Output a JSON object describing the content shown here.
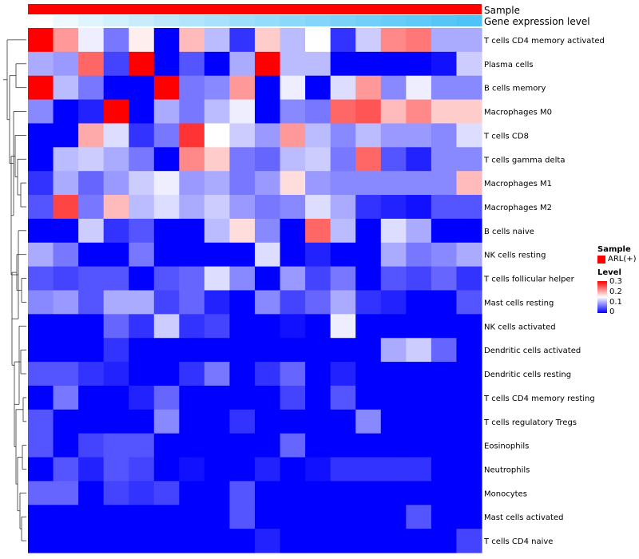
{
  "chart_data": {
    "type": "heatmap",
    "annotations": [
      {
        "label": "Sample",
        "values": [
          "ARL(+)"
        ],
        "color": "#ff0000"
      },
      {
        "label": "Gene expression level",
        "palette_low": "#ffffff",
        "palette_high": "#4fc3f7"
      }
    ],
    "num_columns": 18,
    "rows": [
      "T cells CD4 memory activated",
      "Plasma cells",
      "B cells memory",
      "Macrophages M0",
      "T cells CD8",
      "T cells gamma delta",
      "Macrophages M1",
      "Macrophages M2",
      "B cells naive",
      "NK cells resting",
      "T cells follicular helper",
      "Mast cells resting",
      "NK cells activated",
      "Dendritic cells activated",
      "Dendritic cells resting",
      "T cells CD4 memory resting",
      "T cells regulatory  Tregs",
      "Eosinophils",
      "Neutrophils",
      "Monocytes",
      "Mast cells activated",
      "T cells CD4 naive"
    ],
    "values": [
      [
        0.3,
        0.21,
        0.14,
        0.07,
        0.16,
        0.0,
        0.19,
        0.11,
        0.03,
        0.18,
        0.11,
        0.15,
        0.03,
        0.12,
        0.22,
        0.23,
        0.1,
        0.1
      ],
      [
        0.1,
        0.09,
        0.24,
        0.04,
        0.3,
        0.0,
        0.05,
        0.0,
        0.1,
        0.3,
        0.11,
        0.11,
        0.0,
        0.0,
        0.0,
        0.0,
        0.01,
        0.12
      ],
      [
        0.3,
        0.11,
        0.07,
        0.0,
        0.0,
        0.3,
        0.07,
        0.08,
        0.21,
        0.0,
        0.14,
        0.0,
        0.13,
        0.21,
        0.08,
        0.14,
        0.08,
        0.08
      ],
      [
        0.08,
        0.0,
        0.02,
        0.3,
        0.0,
        0.1,
        0.07,
        0.11,
        0.14,
        0.0,
        0.08,
        0.07,
        0.24,
        0.25,
        0.19,
        0.22,
        0.18,
        0.18
      ],
      [
        0.0,
        0.0,
        0.2,
        0.13,
        0.03,
        0.07,
        0.27,
        0.15,
        0.12,
        0.09,
        0.21,
        0.11,
        0.08,
        0.11,
        0.09,
        0.09,
        0.08,
        0.13
      ],
      [
        0.0,
        0.11,
        0.12,
        0.1,
        0.07,
        0.0,
        0.22,
        0.18,
        0.07,
        0.06,
        0.11,
        0.12,
        0.07,
        0.24,
        0.05,
        0.02,
        0.08,
        0.08
      ],
      [
        0.03,
        0.1,
        0.06,
        0.09,
        0.12,
        0.14,
        0.09,
        0.1,
        0.07,
        0.09,
        0.17,
        0.09,
        0.08,
        0.08,
        0.08,
        0.08,
        0.08,
        0.19
      ],
      [
        0.05,
        0.26,
        0.07,
        0.19,
        0.11,
        0.13,
        0.1,
        0.12,
        0.09,
        0.07,
        0.08,
        0.13,
        0.1,
        0.03,
        0.02,
        0.01,
        0.05,
        0.05
      ],
      [
        0.0,
        0.0,
        0.12,
        0.03,
        0.05,
        0.0,
        0.0,
        0.11,
        0.17,
        0.08,
        0.0,
        0.24,
        0.11,
        0.0,
        0.13,
        0.1,
        0.0,
        0.0
      ],
      [
        0.1,
        0.07,
        0.0,
        0.0,
        0.07,
        0.0,
        0.0,
        0.0,
        0.0,
        0.13,
        0.0,
        0.02,
        0.0,
        0.0,
        0.1,
        0.07,
        0.08,
        0.1
      ],
      [
        0.05,
        0.04,
        0.05,
        0.05,
        0.0,
        0.05,
        0.06,
        0.13,
        0.08,
        0.0,
        0.09,
        0.04,
        0.07,
        0.0,
        0.05,
        0.04,
        0.06,
        0.03
      ],
      [
        0.08,
        0.09,
        0.05,
        0.1,
        0.1,
        0.04,
        0.06,
        0.02,
        0.0,
        0.08,
        0.04,
        0.06,
        0.1,
        0.03,
        0.02,
        0.0,
        0.0,
        0.05
      ],
      [
        0.0,
        0.0,
        0.0,
        0.06,
        0.03,
        0.12,
        0.03,
        0.04,
        0.0,
        0.0,
        0.01,
        0.0,
        0.14,
        0.0,
        0.0,
        0.0,
        0.0,
        0.0
      ],
      [
        0.0,
        0.0,
        0.0,
        0.03,
        0.0,
        0.0,
        0.0,
        0.0,
        0.0,
        0.0,
        0.0,
        0.0,
        0.0,
        0.0,
        0.1,
        0.12,
        0.06,
        0.0
      ],
      [
        0.05,
        0.05,
        0.03,
        0.02,
        0.0,
        0.0,
        0.03,
        0.07,
        0.0,
        0.03,
        0.06,
        0.0,
        0.02,
        0.0,
        0.0,
        0.0,
        0.0,
        0.0
      ],
      [
        0.0,
        0.07,
        0.0,
        0.0,
        0.02,
        0.06,
        0.0,
        0.0,
        0.0,
        0.0,
        0.04,
        0.0,
        0.05,
        0.0,
        0.0,
        0.0,
        0.0,
        0.0
      ],
      [
        0.05,
        0.0,
        0.0,
        0.0,
        0.0,
        0.08,
        0.0,
        0.0,
        0.03,
        0.0,
        0.0,
        0.0,
        0.0,
        0.08,
        0.0,
        0.0,
        0.0,
        0.0
      ],
      [
        0.05,
        0.0,
        0.04,
        0.05,
        0.05,
        0.0,
        0.0,
        0.0,
        0.0,
        0.0,
        0.06,
        0.0,
        0.0,
        0.0,
        0.0,
        0.0,
        0.0,
        0.0
      ],
      [
        0.0,
        0.05,
        0.02,
        0.05,
        0.04,
        0.0,
        0.01,
        0.0,
        0.0,
        0.02,
        0.0,
        0.01,
        0.03,
        0.03,
        0.03,
        0.03,
        0.0,
        0.0
      ],
      [
        0.06,
        0.06,
        0.0,
        0.04,
        0.03,
        0.04,
        0.0,
        0.0,
        0.05,
        0.0,
        0.0,
        0.0,
        0.0,
        0.0,
        0.0,
        0.0,
        0.0,
        0.0
      ],
      [
        0.0,
        0.0,
        0.0,
        0.0,
        0.0,
        0.0,
        0.0,
        0.0,
        0.05,
        0.0,
        0.0,
        0.0,
        0.0,
        0.0,
        0.0,
        0.05,
        0.0,
        0.0
      ],
      [
        0.0,
        0.0,
        0.0,
        0.0,
        0.0,
        0.0,
        0.0,
        0.0,
        0.0,
        0.02,
        0.0,
        0.0,
        0.0,
        0.0,
        0.0,
        0.0,
        0.0,
        0.04
      ]
    ],
    "color_scale": {
      "min": 0,
      "mid": 0.15,
      "max": 0.3,
      "low": "#0000ff",
      "midcolor": "#ffffff",
      "high": "#ff0000"
    },
    "legend": {
      "sample_title": "Sample",
      "sample_entry": "ARL(+)",
      "level_title": "Level",
      "level_ticks": [
        "0.3",
        "0.2",
        "0.1",
        "0"
      ],
      "placement": "right"
    }
  }
}
